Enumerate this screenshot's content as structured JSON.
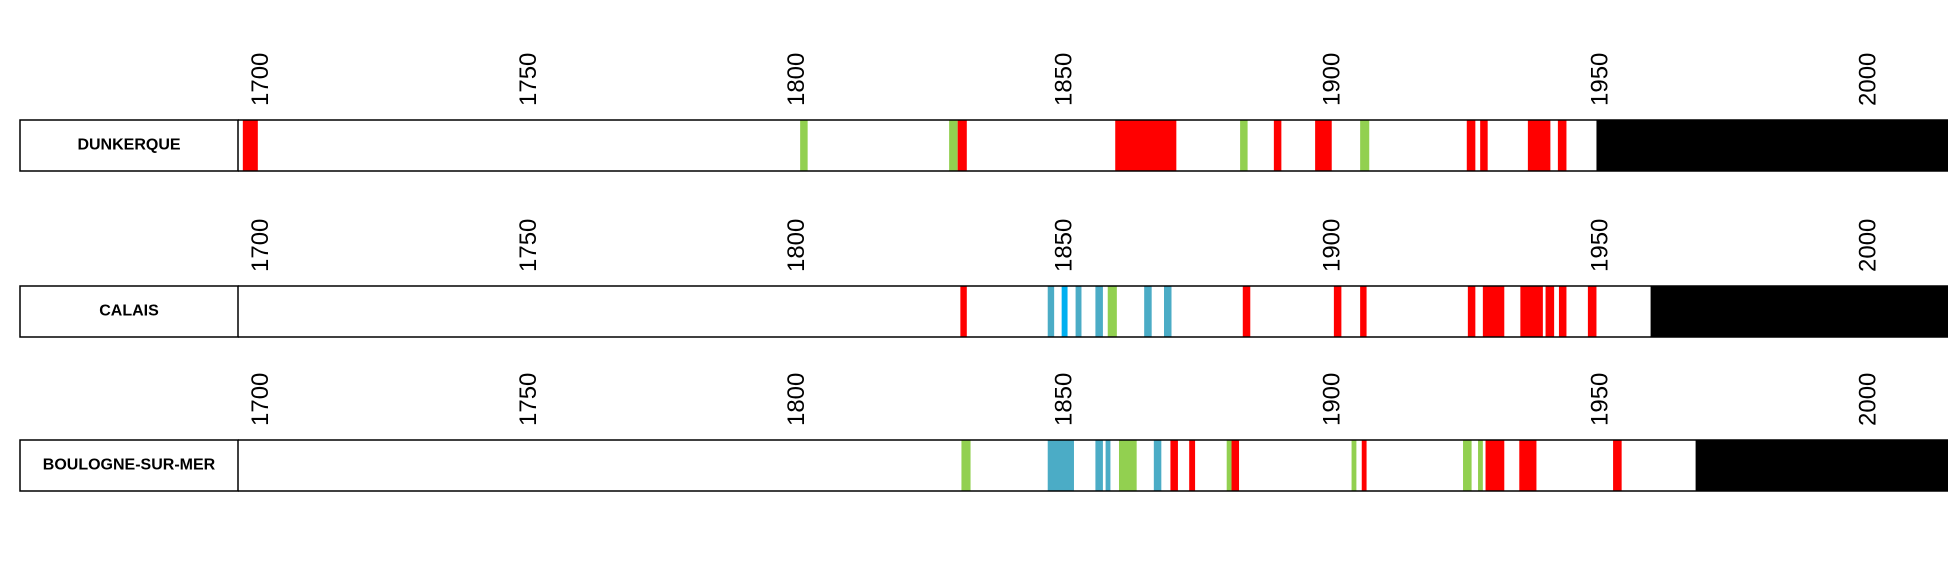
{
  "chart_data": {
    "type": "timeline",
    "xlim": [
      1695.6,
      2014.7
    ],
    "xticks": [
      1700,
      1750,
      1800,
      1850,
      1900,
      1950,
      2000
    ],
    "rows": [
      {
        "name": "DUNKERQUE",
        "segments": [
          {
            "start": 1696.5,
            "end": 1699.3,
            "color": "#ff0000"
          },
          {
            "start": 1800.5,
            "end": 1801.9,
            "color": "#92d050"
          },
          {
            "start": 1828.3,
            "end": 1829.9,
            "color": "#92d050"
          },
          {
            "start": 1829.9,
            "end": 1831.6,
            "color": "#ff0000"
          },
          {
            "start": 1859.3,
            "end": 1870.7,
            "color": "#ff0000"
          },
          {
            "start": 1882.6,
            "end": 1884.0,
            "color": "#92d050"
          },
          {
            "start": 1888.9,
            "end": 1890.3,
            "color": "#ff0000"
          },
          {
            "start": 1896.6,
            "end": 1899.7,
            "color": "#ff0000"
          },
          {
            "start": 1905.0,
            "end": 1906.7,
            "color": "#92d050"
          },
          {
            "start": 1924.9,
            "end": 1926.5,
            "color": "#ff0000"
          },
          {
            "start": 1927.4,
            "end": 1928.8,
            "color": "#ff0000"
          },
          {
            "start": 1936.3,
            "end": 1940.5,
            "color": "#ff0000"
          },
          {
            "start": 1941.9,
            "end": 1943.5,
            "color": "#ff0000"
          },
          {
            "start": 1949.1,
            "end": 2014.7,
            "color": "#000000"
          }
        ]
      },
      {
        "name": "CALAIS",
        "segments": [
          {
            "start": 1830.4,
            "end": 1831.6,
            "color": "#ff0000"
          },
          {
            "start": 1846.7,
            "end": 1847.9,
            "color": "#4bacc6"
          },
          {
            "start": 1849.3,
            "end": 1850.4,
            "color": "#00b0f0"
          },
          {
            "start": 1851.9,
            "end": 1853.0,
            "color": "#4bacc6"
          },
          {
            "start": 1855.6,
            "end": 1857.0,
            "color": "#4bacc6"
          },
          {
            "start": 1857.9,
            "end": 1859.6,
            "color": "#92d050"
          },
          {
            "start": 1864.7,
            "end": 1866.1,
            "color": "#4bacc6"
          },
          {
            "start": 1868.4,
            "end": 1869.8,
            "color": "#4bacc6"
          },
          {
            "start": 1883.1,
            "end": 1884.5,
            "color": "#ff0000"
          },
          {
            "start": 1900.1,
            "end": 1901.5,
            "color": "#ff0000"
          },
          {
            "start": 1905.0,
            "end": 1906.2,
            "color": "#ff0000"
          },
          {
            "start": 1925.1,
            "end": 1926.5,
            "color": "#ff0000"
          },
          {
            "start": 1927.9,
            "end": 1931.9,
            "color": "#ff0000"
          },
          {
            "start": 1934.9,
            "end": 1939.1,
            "color": "#ff0000"
          },
          {
            "start": 1939.6,
            "end": 1941.2,
            "color": "#ff0000"
          },
          {
            "start": 1942.1,
            "end": 1943.5,
            "color": "#ff0000"
          },
          {
            "start": 1947.5,
            "end": 1949.1,
            "color": "#ff0000"
          },
          {
            "start": 1959.2,
            "end": 2014.7,
            "color": "#000000"
          }
        ]
      },
      {
        "name": "BOULOGNE-SUR-MER",
        "segments": [
          {
            "start": 1830.6,
            "end": 1832.3,
            "color": "#92d050"
          },
          {
            "start": 1846.7,
            "end": 1851.6,
            "color": "#4bacc6"
          },
          {
            "start": 1855.6,
            "end": 1857.0,
            "color": "#4bacc6"
          },
          {
            "start": 1857.5,
            "end": 1858.4,
            "color": "#4bacc6"
          },
          {
            "start": 1860.0,
            "end": 1863.3,
            "color": "#92d050"
          },
          {
            "start": 1866.5,
            "end": 1867.9,
            "color": "#4bacc6"
          },
          {
            "start": 1869.6,
            "end": 1871.0,
            "color": "#ff0000"
          },
          {
            "start": 1873.1,
            "end": 1874.2,
            "color": "#ff0000"
          },
          {
            "start": 1880.1,
            "end": 1881.0,
            "color": "#92d050"
          },
          {
            "start": 1881.0,
            "end": 1882.4,
            "color": "#ff0000"
          },
          {
            "start": 1903.4,
            "end": 1904.3,
            "color": "#92d050"
          },
          {
            "start": 1905.3,
            "end": 1906.2,
            "color": "#ff0000"
          },
          {
            "start": 1924.2,
            "end": 1925.8,
            "color": "#92d050"
          },
          {
            "start": 1927.0,
            "end": 1927.9,
            "color": "#92d050"
          },
          {
            "start": 1928.4,
            "end": 1931.9,
            "color": "#ff0000"
          },
          {
            "start": 1934.7,
            "end": 1937.9,
            "color": "#ff0000"
          },
          {
            "start": 1952.2,
            "end": 1953.8,
            "color": "#ff0000"
          },
          {
            "start": 1967.6,
            "end": 2014.7,
            "color": "#000000"
          }
        ]
      }
    ]
  }
}
